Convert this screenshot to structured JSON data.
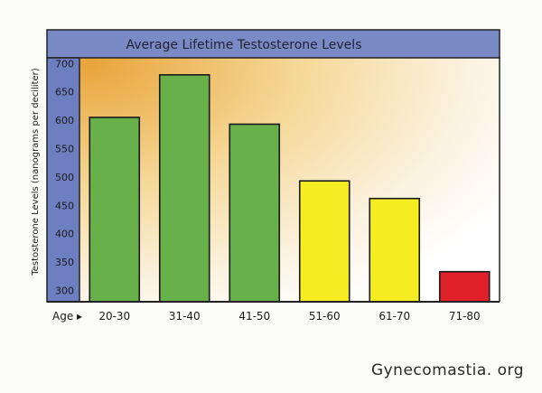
{
  "chart_data": {
    "type": "bar",
    "title": "Average Lifetime Testosterone Levels",
    "ylabel": "Testosterone Levels (nanograms per deciliter)",
    "xlabel": "Age ▸",
    "categories": [
      "20-30",
      "31-40",
      "41-50",
      "51-60",
      "61-70",
      "71-80"
    ],
    "values": [
      605,
      680,
      593,
      493,
      462,
      333
    ],
    "bar_colors": [
      "#68b04a",
      "#68b04a",
      "#68b04a",
      "#f6ec22",
      "#f6ec22",
      "#df2028"
    ],
    "ylim": [
      280,
      710
    ],
    "yticks": [
      300,
      350,
      400,
      450,
      500,
      550,
      600,
      650,
      700
    ],
    "grid": false,
    "background_gradient": [
      "#e9a43a",
      "#f8efd6",
      "#ffffff"
    ],
    "title_band_color": "#7a8ac4",
    "axis_band_color": "#6d7fc0"
  },
  "source": "Gynecomastia. org"
}
